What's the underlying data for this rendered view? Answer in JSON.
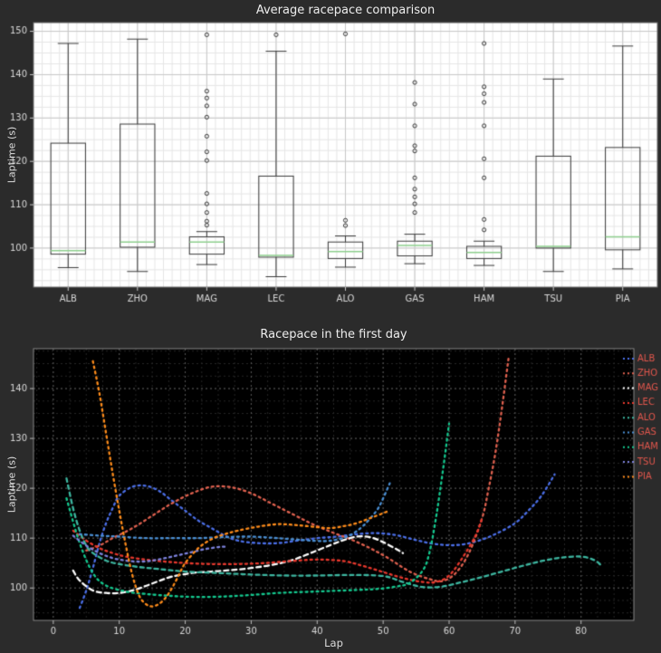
{
  "figure": {
    "background": "#2b2b2b",
    "text_color": "#ededed"
  },
  "chart_data": [
    {
      "type": "box",
      "title": "Average racepace comparison",
      "ylabel": "Laptime (s)",
      "ylim": [
        91,
        152
      ],
      "yticks": [
        100,
        110,
        120,
        130,
        140,
        150
      ],
      "plot_bg": "#ffffff",
      "grid_minor": "#e6e6e6",
      "grid_major": "#c8c8c8",
      "box_color": "#3a3a3a",
      "median_color": "#8ed08e",
      "categories": [
        "ALB",
        "ZHO",
        "MAG",
        "LEC",
        "ALO",
        "GAS",
        "HAM",
        "TSU",
        "PIA"
      ],
      "stats": [
        {
          "label": "ALB",
          "whislo": 95.5,
          "q1": 98.6,
          "med": 99.4,
          "q3": 124.2,
          "whishi": 147.2,
          "fliers": []
        },
        {
          "label": "ZHO",
          "whislo": 94.6,
          "q1": 100.2,
          "med": 101.4,
          "q3": 128.6,
          "whishi": 148.2,
          "fliers": []
        },
        {
          "label": "MAG",
          "whislo": 96.2,
          "q1": 98.6,
          "med": 101.4,
          "q3": 102.6,
          "whishi": 103.8,
          "fliers": [
            105.3,
            106.2,
            108.2,
            110.2,
            112.6,
            120.2,
            122.2,
            125.8,
            130.2,
            132.8,
            134.6,
            136.2,
            149.2
          ]
        },
        {
          "label": "LEC",
          "whislo": 93.4,
          "q1": 97.9,
          "med": 98.3,
          "q3": 116.6,
          "whishi": 145.4,
          "fliers": [
            149.2
          ]
        },
        {
          "label": "ALO",
          "whislo": 95.6,
          "q1": 97.6,
          "med": 99.2,
          "q3": 101.4,
          "whishi": 102.8,
          "fliers": [
            105.2,
            106.4,
            149.4
          ]
        },
        {
          "label": "GAS",
          "whislo": 96.4,
          "q1": 98.2,
          "med": 100.6,
          "q3": 101.6,
          "whishi": 103.2,
          "fliers": [
            108.2,
            110.2,
            111.8,
            113.6,
            116.2,
            122.4,
            123.6,
            128.2,
            133.2,
            138.2
          ]
        },
        {
          "label": "HAM",
          "whislo": 96.0,
          "q1": 97.6,
          "med": 99.0,
          "q3": 100.4,
          "whishi": 101.6,
          "fliers": [
            104.2,
            106.6,
            116.2,
            120.6,
            128.2,
            133.6,
            135.6,
            137.2,
            147.2
          ]
        },
        {
          "label": "TSU",
          "whislo": 94.6,
          "q1": 100.0,
          "med": 100.4,
          "q3": 121.2,
          "whishi": 139.0,
          "fliers": []
        },
        {
          "label": "PIA",
          "whislo": 95.2,
          "q1": 99.6,
          "med": 102.6,
          "q3": 123.2,
          "whishi": 146.6,
          "fliers": []
        }
      ]
    },
    {
      "type": "line",
      "title": "Racepace in the first day",
      "xlabel": "Lap",
      "ylabel": "Laptime (s)",
      "xlim": [
        -3,
        88
      ],
      "ylim": [
        93.5,
        148
      ],
      "xticks": [
        0,
        10,
        20,
        30,
        40,
        50,
        60,
        70,
        80
      ],
      "yticks": [
        100,
        110,
        120,
        130,
        140
      ],
      "plot_bg": "#000000",
      "grid_major": "#565656",
      "grid_minor": "#262626",
      "frame_color": "#8a8a8a",
      "legend_label_color": "#e3574d",
      "series": [
        {
          "name": "ALB",
          "color": "#4b6fe8",
          "dash": [
            2,
            4
          ],
          "points": [
            [
              4,
              96
            ],
            [
              5,
              99.5
            ],
            [
              6,
              104
            ],
            [
              7,
              109
            ],
            [
              8,
              113
            ],
            [
              9,
              116
            ],
            [
              10,
              118.5
            ],
            [
              12,
              120.3
            ],
            [
              14,
              120.5
            ],
            [
              16,
              119.5
            ],
            [
              18,
              117.5
            ],
            [
              20,
              115.5
            ],
            [
              22,
              113.5
            ],
            [
              24,
              112
            ],
            [
              26,
              110.5
            ],
            [
              28,
              109.5
            ],
            [
              31,
              109
            ],
            [
              34,
              109
            ],
            [
              37,
              109.5
            ],
            [
              40,
              110
            ],
            [
              43,
              110.3
            ],
            [
              46,
              110.8
            ],
            [
              49,
              111
            ],
            [
              52,
              110.6
            ],
            [
              55,
              109.6
            ],
            [
              58,
              108.8
            ],
            [
              61,
              108.6
            ],
            [
              64,
              109.3
            ],
            [
              67,
              110.8
            ],
            [
              70,
              113
            ],
            [
              72,
              115.5
            ],
            [
              74,
              118.5
            ],
            [
              76,
              122.8
            ]
          ]
        },
        {
          "name": "ZHO",
          "color": "#e0614f",
          "dash": [
            2,
            4
          ],
          "points": [
            [
              5,
              107.5
            ],
            [
              7,
              108.5
            ],
            [
              9,
              110
            ],
            [
              12,
              112
            ],
            [
              15,
              114.5
            ],
            [
              18,
              117
            ],
            [
              21,
              119
            ],
            [
              24,
              120.3
            ],
            [
              27,
              120.2
            ],
            [
              30,
              119
            ],
            [
              33,
              117
            ],
            [
              36,
              115
            ],
            [
              39,
              113
            ],
            [
              42,
              111.3
            ],
            [
              45,
              109.8
            ],
            [
              48,
              108
            ],
            [
              51,
              105.8
            ],
            [
              54,
              103.3
            ],
            [
              57,
              101.8
            ],
            [
              59,
              101.4
            ],
            [
              61,
              103
            ],
            [
              63,
              107
            ],
            [
              65,
              114
            ],
            [
              66,
              120
            ],
            [
              67,
              127
            ],
            [
              68,
              136
            ],
            [
              69,
              146
            ]
          ]
        },
        {
          "name": "MAG",
          "color": "#ffffff",
          "dash": [
            5,
            4
          ],
          "points": [
            [
              3,
              103.5
            ],
            [
              4,
              101.5
            ],
            [
              6,
              99.5
            ],
            [
              8,
              99
            ],
            [
              10,
              99
            ],
            [
              12,
              99.5
            ],
            [
              14,
              100.4
            ],
            [
              16,
              101.4
            ],
            [
              18,
              102.3
            ],
            [
              21,
              103
            ],
            [
              24,
              103.3
            ],
            [
              27,
              103.6
            ],
            [
              30,
              104
            ],
            [
              33,
              104.6
            ],
            [
              36,
              105.5
            ],
            [
              39,
              107
            ],
            [
              42,
              108.6
            ],
            [
              44,
              109.6
            ],
            [
              46,
              110.3
            ],
            [
              48,
              110.2
            ],
            [
              50,
              109.2
            ],
            [
              52,
              107.8
            ],
            [
              53,
              107
            ]
          ]
        },
        {
          "name": "LEC",
          "color": "#e8382d",
          "dash": [
            2,
            4
          ],
          "points": [
            [
              3,
              111.5
            ],
            [
              5,
              109.5
            ],
            [
              7,
              108
            ],
            [
              9,
              107
            ],
            [
              11,
              106.3
            ],
            [
              14,
              105.7
            ],
            [
              17,
              105.3
            ],
            [
              20,
              105
            ],
            [
              24,
              104.8
            ],
            [
              28,
              104.8
            ],
            [
              32,
              105
            ],
            [
              36,
              105.4
            ],
            [
              40,
              105.7
            ],
            [
              44,
              105.4
            ],
            [
              47,
              104.4
            ],
            [
              50,
              103.2
            ],
            [
              53,
              102
            ],
            [
              56,
              101.2
            ],
            [
              58,
              101.2
            ],
            [
              60,
              102.5
            ],
            [
              62,
              106
            ],
            [
              64,
              110.5
            ],
            [
              65,
              114
            ]
          ]
        },
        {
          "name": "ALO",
          "color": "#3db6a0",
          "dash": [
            4,
            4
          ],
          "points": [
            [
              2,
              122
            ],
            [
              3,
              116
            ],
            [
              4,
              111.5
            ],
            [
              5,
              108.5
            ],
            [
              6,
              107
            ],
            [
              8,
              105.5
            ],
            [
              10,
              104.8
            ],
            [
              13,
              104.2
            ],
            [
              16,
              103.8
            ],
            [
              20,
              103.3
            ],
            [
              25,
              103
            ],
            [
              30,
              102.7
            ],
            [
              35,
              102.5
            ],
            [
              40,
              102.5
            ],
            [
              45,
              102.6
            ],
            [
              50,
              102.4
            ],
            [
              53,
              101.2
            ],
            [
              56,
              100.2
            ],
            [
              59,
              100.3
            ],
            [
              62,
              101.2
            ],
            [
              65,
              102.2
            ],
            [
              68,
              103.3
            ],
            [
              71,
              104.4
            ],
            [
              74,
              105.4
            ],
            [
              77,
              106.1
            ],
            [
              80,
              106.3
            ],
            [
              82,
              105.6
            ],
            [
              83,
              104.6
            ]
          ]
        },
        {
          "name": "GAS",
          "color": "#4a8fd4",
          "dash": [
            2,
            4
          ],
          "points": [
            [
              4,
              110.8
            ],
            [
              7,
              110.5
            ],
            [
              10,
              110.3
            ],
            [
              14,
              110
            ],
            [
              18,
              110
            ],
            [
              22,
              110
            ],
            [
              26,
              110.2
            ],
            [
              30,
              110.3
            ],
            [
              34,
              110
            ],
            [
              38,
              109.6
            ],
            [
              41,
              109.4
            ],
            [
              43,
              109.7
            ],
            [
              45,
              110.6
            ],
            [
              47,
              112.5
            ],
            [
              49,
              115.5
            ],
            [
              50,
              118
            ],
            [
              51,
              121
            ]
          ]
        },
        {
          "name": "HAM",
          "color": "#14c98f",
          "dash": [
            2,
            4
          ],
          "points": [
            [
              2,
              118
            ],
            [
              4,
              109
            ],
            [
              6,
              103
            ],
            [
              8,
              100.5
            ],
            [
              11,
              99.3
            ],
            [
              14,
              98.8
            ],
            [
              18,
              98.4
            ],
            [
              22,
              98.2
            ],
            [
              26,
              98.3
            ],
            [
              30,
              98.6
            ],
            [
              34,
              99
            ],
            [
              38,
              99.2
            ],
            [
              42,
              99.4
            ],
            [
              46,
              99.6
            ],
            [
              49,
              99.8
            ],
            [
              52,
              100.3
            ],
            [
              54,
              101
            ],
            [
              56,
              103.5
            ],
            [
              57,
              107
            ],
            [
              58,
              114
            ],
            [
              59,
              123
            ],
            [
              60,
              133
            ]
          ]
        },
        {
          "name": "TSU",
          "color": "#7d82dd",
          "dash": [
            2,
            4
          ],
          "points": [
            [
              3,
              110.5
            ],
            [
              5,
              108.5
            ],
            [
              7,
              107
            ],
            [
              9,
              106
            ],
            [
              11,
              105.5
            ],
            [
              13,
              105.3
            ],
            [
              15,
              105.5
            ],
            [
              17,
              106
            ],
            [
              19,
              106.6
            ],
            [
              21,
              107.2
            ],
            [
              23,
              107.8
            ],
            [
              25,
              108.2
            ],
            [
              26,
              108.3
            ]
          ]
        },
        {
          "name": "PIA",
          "color": "#ff8c1a",
          "dash": [
            2,
            4
          ],
          "points": [
            [
              6,
              145.5
            ],
            [
              7,
              139
            ],
            [
              8,
              131
            ],
            [
              9,
              123
            ],
            [
              10,
              115.5
            ],
            [
              11,
              108.5
            ],
            [
              12,
              102.5
            ],
            [
              13,
              98.5
            ],
            [
              14,
              96.8
            ],
            [
              15,
              96.3
            ],
            [
              16,
              96.8
            ],
            [
              17,
              98
            ],
            [
              18,
              100
            ],
            [
              19,
              102.5
            ],
            [
              20,
              105
            ],
            [
              22,
              108
            ],
            [
              24,
              109.8
            ],
            [
              26,
              110.8
            ],
            [
              28,
              111.5
            ],
            [
              31,
              112.3
            ],
            [
              34,
              112.8
            ],
            [
              37,
              112.6
            ],
            [
              40,
              112.2
            ],
            [
              42,
              112
            ],
            [
              44,
              112.4
            ],
            [
              46,
              113
            ],
            [
              48,
              114
            ],
            [
              50,
              115
            ],
            [
              51,
              115.6
            ]
          ]
        }
      ]
    }
  ]
}
